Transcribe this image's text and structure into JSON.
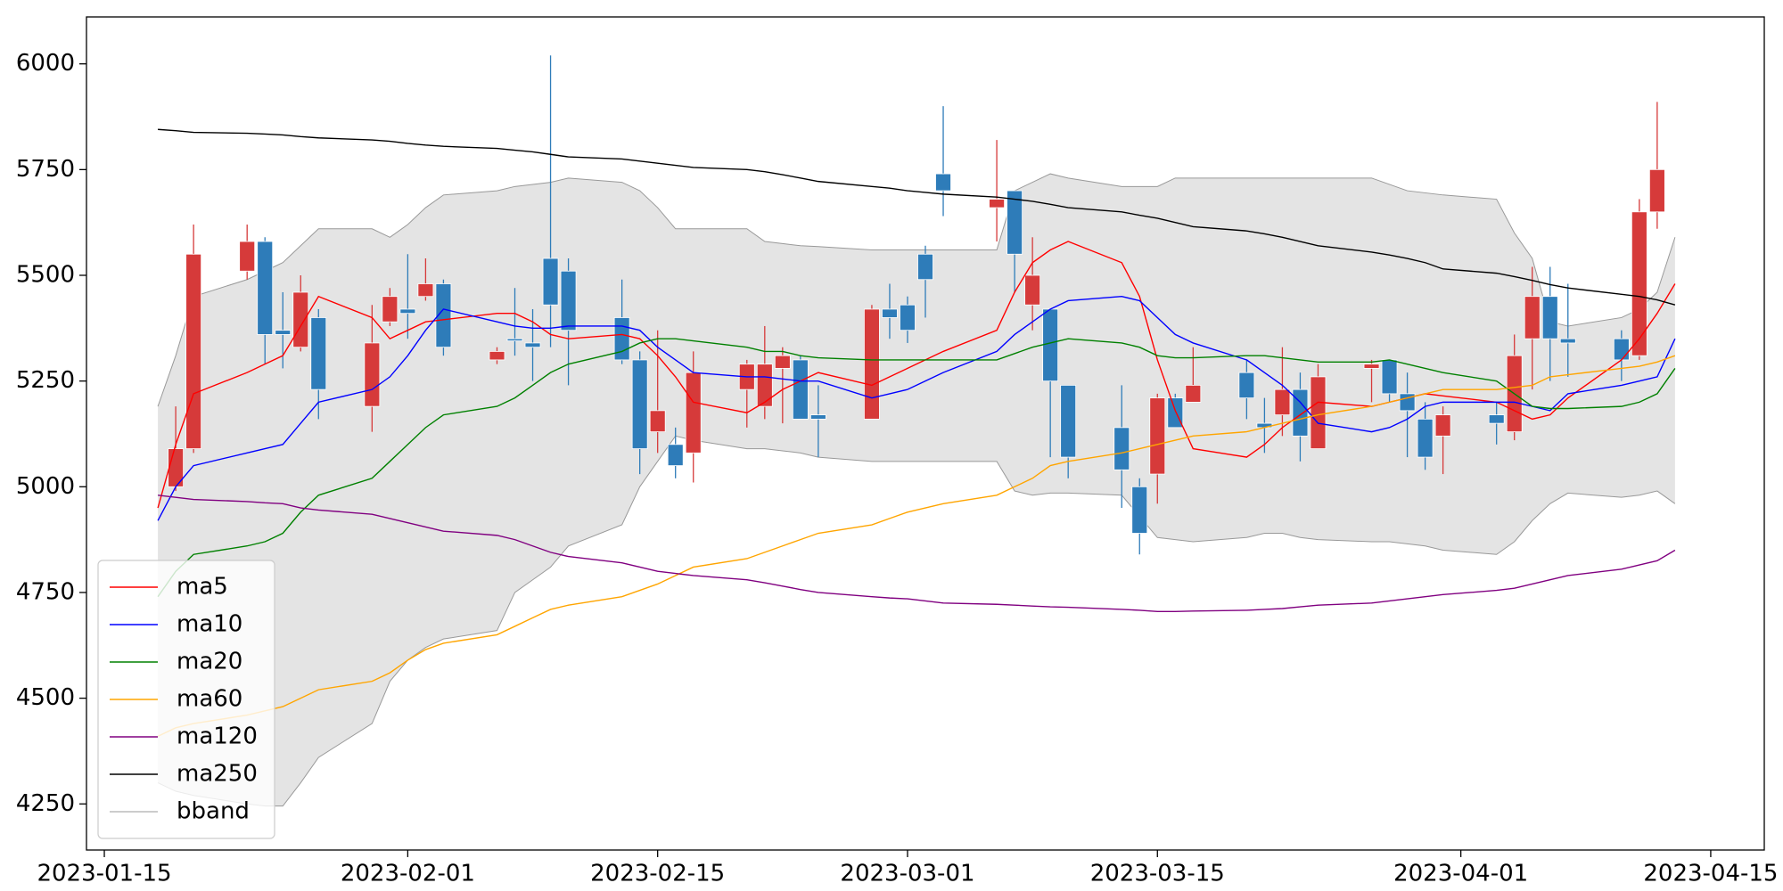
{
  "chart_data": {
    "type": "candlestick",
    "x": [
      "2023-01-18",
      "2023-01-19",
      "2023-01-20",
      "2023-01-23",
      "2023-01-24",
      "2023-01-25",
      "2023-01-26",
      "2023-01-27",
      "2023-01-30",
      "2023-01-31",
      "2023-02-01",
      "2023-02-02",
      "2023-02-03",
      "2023-02-06",
      "2023-02-07",
      "2023-02-08",
      "2023-02-09",
      "2023-02-10",
      "2023-02-13",
      "2023-02-14",
      "2023-02-15",
      "2023-02-16",
      "2023-02-17",
      "2023-02-20",
      "2023-02-21",
      "2023-02-22",
      "2023-02-23",
      "2023-02-24",
      "2023-02-27",
      "2023-02-28",
      "2023-03-01",
      "2023-03-02",
      "2023-03-03",
      "2023-03-06",
      "2023-03-07",
      "2023-03-08",
      "2023-03-09",
      "2023-03-10",
      "2023-03-13",
      "2023-03-14",
      "2023-03-15",
      "2023-03-16",
      "2023-03-17",
      "2023-03-20",
      "2023-03-21",
      "2023-03-22",
      "2023-03-23",
      "2023-03-24",
      "2023-03-27",
      "2023-03-28",
      "2023-03-29",
      "2023-03-30",
      "2023-03-31",
      "2023-04-03",
      "2023-04-04",
      "2023-04-05",
      "2023-04-06",
      "2023-04-07",
      "2023-04-10",
      "2023-04-11",
      "2023-04-12",
      "2023-04-13"
    ],
    "open": [
      null,
      5000,
      5090,
      5510,
      5580,
      5370,
      5330,
      5400,
      5190,
      5390,
      5420,
      5450,
      5480,
      5300,
      5350,
      5340,
      5540,
      5510,
      5400,
      5300,
      5130,
      5100,
      5080,
      5230,
      5190,
      5280,
      5300,
      5170,
      5160,
      5420,
      5430,
      5550,
      5740,
      5660,
      5700,
      5430,
      5420,
      5240,
      5140,
      5000,
      5030,
      5210,
      5200,
      5270,
      5150,
      5170,
      5230,
      5090,
      5280,
      5300,
      5220,
      5160,
      5120,
      5170,
      5130,
      5350,
      5450,
      5350,
      5350,
      5310,
      5650,
      null
    ],
    "high": [
      null,
      5190,
      5620,
      5620,
      5590,
      5460,
      5500,
      5420,
      5430,
      5470,
      5550,
      5540,
      5490,
      5330,
      5470,
      5420,
      6020,
      5540,
      5490,
      5320,
      5370,
      5140,
      5320,
      5300,
      5380,
      5330,
      5310,
      5240,
      5430,
      5480,
      5450,
      5570,
      5900,
      5820,
      5700,
      5590,
      5420,
      5240,
      5240,
      5020,
      5220,
      5220,
      5330,
      5300,
      5210,
      5330,
      5270,
      5290,
      5300,
      5300,
      5270,
      5200,
      5190,
      5200,
      5360,
      5520,
      5520,
      5480,
      5370,
      5680,
      5910,
      null
    ],
    "low": [
      null,
      4990,
      5080,
      5490,
      5290,
      5280,
      5320,
      5160,
      5130,
      5380,
      5350,
      5440,
      5310,
      5290,
      5310,
      5250,
      5330,
      5240,
      5290,
      5030,
      5080,
      5020,
      5010,
      5140,
      5160,
      5150,
      5160,
      5070,
      5160,
      5350,
      5340,
      5400,
      5640,
      5580,
      5460,
      5370,
      5070,
      5020,
      4950,
      4840,
      4960,
      5140,
      5200,
      5160,
      5080,
      5120,
      5060,
      5090,
      5200,
      5200,
      5070,
      5040,
      5030,
      5100,
      5110,
      5230,
      5250,
      5260,
      5250,
      5300,
      5610,
      null
    ],
    "close": [
      null,
      5090,
      5550,
      5580,
      5360,
      5360,
      5460,
      5230,
      5340,
      5450,
      5410,
      5480,
      5330,
      5320,
      5345,
      5330,
      5430,
      5370,
      5300,
      5090,
      5180,
      5050,
      5270,
      5290,
      5290,
      5310,
      5160,
      5160,
      5420,
      5400,
      5370,
      5490,
      5700,
      5680,
      5550,
      5500,
      5250,
      5070,
      5040,
      4890,
      5210,
      5140,
      5240,
      5210,
      5140,
      5230,
      5120,
      5260,
      5290,
      5220,
      5180,
      5070,
      5170,
      5150,
      5310,
      5450,
      5350,
      5340,
      5300,
      5650,
      5750,
      null
    ],
    "up_color": "#d63a3a",
    "down_color": "#2e7cb9",
    "series": [
      {
        "name": "ma5",
        "color": "red",
        "values": [
          4950,
          5100,
          5220,
          5270,
          5290,
          5310,
          5380,
          5450,
          5400,
          5350,
          5370,
          5390,
          5395,
          5410,
          5410,
          5390,
          5360,
          5350,
          5360,
          5350,
          5310,
          5260,
          5200,
          5175,
          5200,
          5230,
          5250,
          5270,
          5240,
          5260,
          5280,
          5300,
          5320,
          5370,
          5460,
          5530,
          5560,
          5580,
          5530,
          5450,
          5300,
          5180,
          5090,
          5070,
          5100,
          5140,
          5170,
          5200,
          5190,
          5200,
          5210,
          5220,
          5215,
          5200,
          5180,
          5160,
          5170,
          5210,
          5300,
          5350,
          5410,
          5480
        ]
      },
      {
        "name": "ma10",
        "color": "blue",
        "values": [
          4920,
          5000,
          5050,
          5080,
          5090,
          5100,
          5150,
          5200,
          5230,
          5260,
          5310,
          5370,
          5420,
          5390,
          5380,
          5375,
          5375,
          5380,
          5380,
          5370,
          5330,
          5300,
          5270,
          5260,
          5260,
          5255,
          5250,
          5250,
          5210,
          5220,
          5230,
          5250,
          5270,
          5320,
          5360,
          5390,
          5420,
          5440,
          5450,
          5440,
          5400,
          5360,
          5340,
          5300,
          5270,
          5240,
          5200,
          5150,
          5130,
          5140,
          5160,
          5190,
          5200,
          5200,
          5200,
          5190,
          5180,
          5220,
          5240,
          5250,
          5260,
          5350
        ]
      },
      {
        "name": "ma20",
        "color": "green",
        "values": [
          4740,
          4800,
          4840,
          4860,
          4870,
          4890,
          4940,
          4980,
          5020,
          5060,
          5100,
          5140,
          5170,
          5190,
          5210,
          5240,
          5270,
          5290,
          5320,
          5340,
          5350,
          5350,
          5345,
          5330,
          5320,
          5320,
          5310,
          5305,
          5300,
          5300,
          5300,
          5300,
          5300,
          5300,
          5315,
          5330,
          5340,
          5350,
          5340,
          5330,
          5310,
          5305,
          5305,
          5310,
          5310,
          5305,
          5300,
          5295,
          5295,
          5300,
          5290,
          5280,
          5270,
          5250,
          5220,
          5190,
          5185,
          5185,
          5190,
          5200,
          5220,
          5280
        ]
      },
      {
        "name": "ma60",
        "color": "orange",
        "values": [
          4410,
          4430,
          4440,
          4460,
          4470,
          4480,
          4500,
          4520,
          4540,
          4560,
          4590,
          4615,
          4630,
          4650,
          4670,
          4690,
          4710,
          4720,
          4740,
          4755,
          4770,
          4790,
          4810,
          4830,
          4845,
          4860,
          4875,
          4890,
          4910,
          4925,
          4940,
          4950,
          4960,
          4980,
          5000,
          5020,
          5050,
          5060,
          5080,
          5090,
          5100,
          5110,
          5120,
          5130,
          5140,
          5150,
          5160,
          5170,
          5190,
          5200,
          5210,
          5220,
          5230,
          5230,
          5235,
          5240,
          5260,
          5265,
          5280,
          5285,
          5295,
          5310
        ]
      },
      {
        "name": "ma120",
        "color": "purple",
        "values": [
          4980,
          4975,
          4970,
          4965,
          4962,
          4960,
          4950,
          4945,
          4935,
          4925,
          4915,
          4905,
          4895,
          4885,
          4875,
          4860,
          4845,
          4835,
          4820,
          4810,
          4800,
          4795,
          4790,
          4780,
          4773,
          4765,
          4757,
          4750,
          4740,
          4737,
          4735,
          4730,
          4725,
          4722,
          4720,
          4718,
          4716,
          4715,
          4710,
          4708,
          4705,
          4705,
          4706,
          4708,
          4710,
          4712,
          4716,
          4720,
          4725,
          4730,
          4735,
          4740,
          4745,
          4755,
          4760,
          4770,
          4780,
          4790,
          4805,
          4815,
          4825,
          4850
        ]
      },
      {
        "name": "ma250",
        "color": "black",
        "values": [
          5845,
          5842,
          5838,
          5836,
          5834,
          5832,
          5828,
          5825,
          5820,
          5817,
          5812,
          5808,
          5805,
          5800,
          5796,
          5792,
          5786,
          5780,
          5775,
          5770,
          5765,
          5760,
          5755,
          5750,
          5745,
          5738,
          5730,
          5722,
          5710,
          5706,
          5700,
          5696,
          5692,
          5685,
          5680,
          5675,
          5668,
          5660,
          5650,
          5642,
          5635,
          5625,
          5615,
          5605,
          5598,
          5590,
          5580,
          5570,
          5555,
          5548,
          5540,
          5530,
          5515,
          5505,
          5497,
          5488,
          5478,
          5470,
          5455,
          5450,
          5442,
          5430
        ]
      }
    ],
    "bband": {
      "name": "bband",
      "color": "#999999",
      "fill": "#e4e4e4",
      "upper": [
        5190,
        5310,
        5450,
        5490,
        5510,
        5530,
        5570,
        5610,
        5610,
        5590,
        5620,
        5660,
        5690,
        5700,
        5710,
        5715,
        5720,
        5730,
        5720,
        5700,
        5660,
        5610,
        5610,
        5610,
        5580,
        5575,
        5570,
        5568,
        5560,
        5560,
        5560,
        5560,
        5560,
        5560,
        5700,
        5720,
        5740,
        5730,
        5710,
        5710,
        5710,
        5730,
        5730,
        5730,
        5730,
        5730,
        5730,
        5730,
        5730,
        5715,
        5700,
        5695,
        5690,
        5680,
        5600,
        5540,
        5390,
        5380,
        5400,
        5420,
        5460,
        5590
      ],
      "lower": [
        4300,
        4280,
        4270,
        4250,
        4245,
        4245,
        4300,
        4360,
        4440,
        4540,
        4590,
        4620,
        4640,
        4660,
        4750,
        4780,
        4810,
        4860,
        4910,
        5000,
        5060,
        5120,
        5110,
        5090,
        5090,
        5085,
        5080,
        5070,
        5060,
        5060,
        5060,
        5060,
        5060,
        5060,
        4990,
        4980,
        4985,
        4985,
        4980,
        4930,
        4880,
        4875,
        4870,
        4880,
        4890,
        4890,
        4880,
        4875,
        4870,
        4870,
        4865,
        4860,
        4850,
        4840,
        4870,
        4920,
        4960,
        4985,
        4975,
        4980,
        4990,
        4960
      ]
    },
    "xlim": [
      "2023-01-14",
      "2023-04-18"
    ],
    "xticks": [
      "2023-01-15",
      "2023-02-01",
      "2023-02-15",
      "2023-03-01",
      "2023-03-15",
      "2023-04-01",
      "2023-04-15"
    ],
    "ylim": [
      4141,
      6111
    ],
    "yticks": [
      4250,
      4500,
      4750,
      5000,
      5250,
      5500,
      5750,
      6000
    ],
    "legend": "lower left"
  }
}
